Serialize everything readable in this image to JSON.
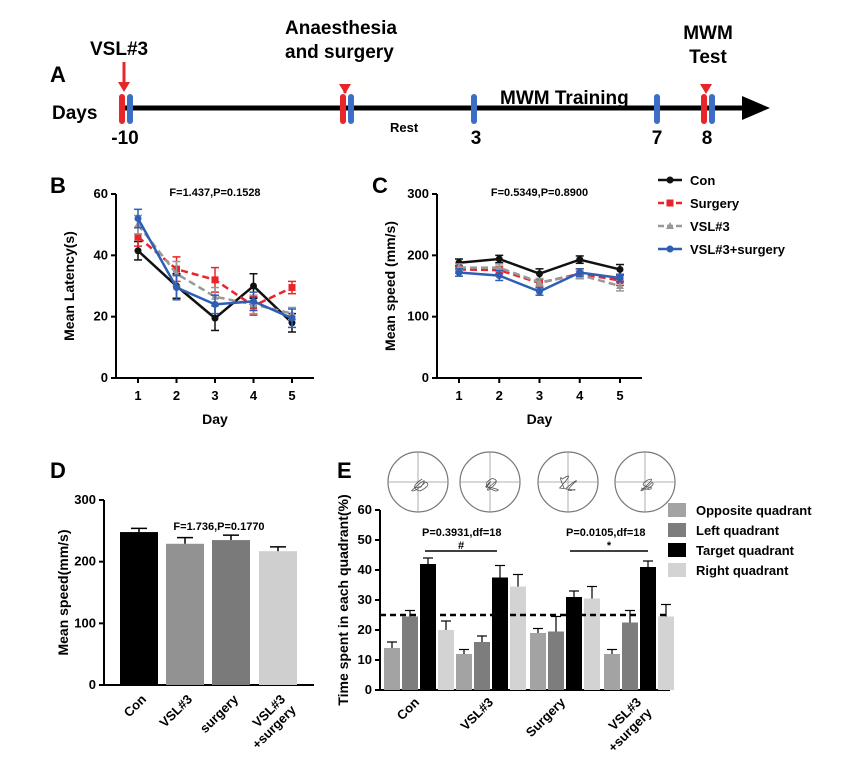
{
  "panel_labels": [
    "A",
    "B",
    "C",
    "D",
    "E"
  ],
  "colors": {
    "con": "#111111",
    "surgery": "#e8262a",
    "vsl3": "#999999",
    "vsl3_surgery": "#2e5fb4",
    "timeline_red": "#e8262a",
    "timeline_blue": "#3c6ec6",
    "opposite": "#a3a3a3",
    "left": "#7d7d7d",
    "target": "#000000",
    "right": "#d3d3d3"
  },
  "chart_data": [
    {
      "panel": "A",
      "type": "timeline",
      "row_label": "Days",
      "events": [
        "VSL#3",
        "Anaesthesia\nand surgery",
        "MWM Training",
        "MWM\nTest"
      ],
      "interval_labels": [
        "Rest"
      ],
      "day_ticks": [
        "-10",
        "3",
        "7",
        "8"
      ]
    },
    {
      "panel": "B",
      "type": "line",
      "stat": "F=1.437,P=0.1528",
      "xlabel": "Day",
      "ylabel": "Mean Latency(s)",
      "categories": [
        "1",
        "2",
        "3",
        "4",
        "5"
      ],
      "ylim": [
        0,
        60
      ],
      "yticks": [
        "0",
        "20",
        "40",
        "60"
      ],
      "series": [
        {
          "name": "Con",
          "values": [
            41.5,
            30,
            19.5,
            30,
            18
          ],
          "errors": [
            3,
            4,
            4,
            4,
            3
          ]
        },
        {
          "name": "Surgery",
          "values": [
            46,
            35.5,
            32,
            23.5,
            29.5
          ],
          "errors": [
            3,
            4,
            4,
            3,
            2
          ]
        },
        {
          "name": "VSL#3",
          "values": [
            50,
            34,
            26.5,
            24,
            21
          ],
          "errors": [
            3,
            4,
            3,
            3,
            2
          ]
        },
        {
          "name": "VSL#3+surgery",
          "values": [
            52,
            29.5,
            24,
            25,
            19.5
          ],
          "errors": [
            3,
            4,
            3,
            3,
            3
          ]
        }
      ]
    },
    {
      "panel": "C",
      "type": "line",
      "stat": "F=0.5349,P=0.8900",
      "xlabel": "Day",
      "ylabel": "Mean speed (mm/s)",
      "categories": [
        "1",
        "2",
        "3",
        "4",
        "5"
      ],
      "ylim": [
        0,
        300
      ],
      "yticks": [
        "0",
        "100",
        "200",
        "300"
      ],
      "legend": [
        "Con",
        "Surgery",
        "VSL#3",
        "VSL#3+surgery"
      ],
      "series": [
        {
          "name": "Con",
          "values": [
            188,
            194,
            170,
            193,
            177
          ],
          "errors": [
            6,
            6,
            8,
            6,
            8
          ]
        },
        {
          "name": "Surgery",
          "values": [
            177,
            176,
            155,
            170,
            159
          ],
          "errors": [
            6,
            6,
            6,
            8,
            8
          ]
        },
        {
          "name": "VSL#3",
          "values": [
            180,
            180,
            156,
            168,
            150
          ],
          "errors": [
            6,
            6,
            6,
            6,
            8
          ]
        },
        {
          "name": "VSL#3+surgery",
          "values": [
            172,
            167,
            141,
            172,
            163
          ],
          "errors": [
            6,
            8,
            6,
            6,
            6
          ]
        }
      ]
    },
    {
      "panel": "D",
      "type": "bar",
      "stat": "F=1.736,P=0.1770",
      "ylabel": "Mean speed(mm/s)",
      "categories": [
        "Con",
        "VSL#3",
        "surgery",
        "VSL#3\n+surgery"
      ],
      "ylim": [
        0,
        300
      ],
      "yticks": [
        "0",
        "100",
        "200",
        "300"
      ],
      "values": [
        248,
        229,
        235,
        217
      ],
      "errors": [
        6,
        10,
        8,
        7
      ]
    },
    {
      "panel": "E",
      "type": "bar",
      "ylabel": "Time spent in each quadrant(%)",
      "categories": [
        "Con",
        "VSL#3",
        "Surgery",
        "VSL#3\n+surgery"
      ],
      "ylim": [
        0,
        60
      ],
      "yticks": [
        "0",
        "10",
        "20",
        "30",
        "40",
        "50",
        "60"
      ],
      "reference_line": 25,
      "legend": [
        "Opposite quadrant",
        "Left quadrant",
        "Target quadrant",
        "Right quadrant"
      ],
      "series": [
        {
          "name": "Opposite quadrant",
          "values": [
            14,
            12,
            19,
            12
          ],
          "errors": [
            2,
            1.5,
            1.5,
            1.5
          ]
        },
        {
          "name": "Left quadrant",
          "values": [
            24.5,
            16,
            19.5,
            22.5
          ],
          "errors": [
            2,
            2,
            5,
            4
          ]
        },
        {
          "name": "Target quadrant",
          "values": [
            42,
            37.5,
            31,
            41
          ],
          "errors": [
            2,
            4,
            2,
            2
          ]
        },
        {
          "name": "Right quadrant",
          "values": [
            20,
            34.5,
            30.5,
            24.5
          ],
          "errors": [
            3,
            4,
            4,
            4
          ]
        }
      ],
      "comparisons": [
        {
          "text": "P=0.3931,df=18",
          "mark": "#"
        },
        {
          "text": "P=0.0105,df=18",
          "mark": "*"
        }
      ]
    }
  ]
}
